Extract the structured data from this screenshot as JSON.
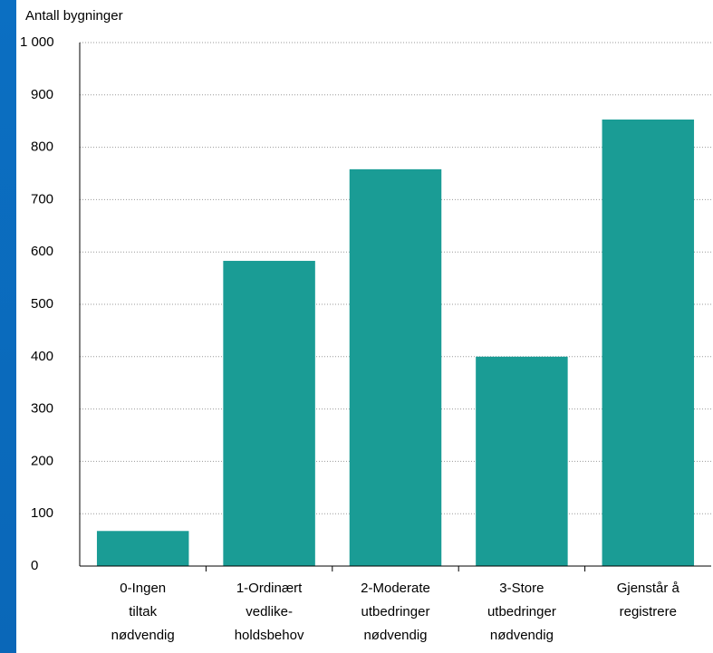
{
  "chart_data": {
    "type": "bar",
    "y_label": "Antall bygninger",
    "categories": [
      "0-Ingen\ntiltak\nnødvendig",
      "1-Ordinært\nvedlike-\nholdsbehov",
      "2-Moderate\nutbedringer\nnødvendig",
      "3-Store\nutbedringer\nnødvendig",
      "Gjenstår å\nregistrere"
    ],
    "values": [
      67,
      583,
      758,
      400,
      853
    ],
    "color": "#1a9c95",
    "ylim": [
      0,
      1000
    ],
    "yticks": [
      0,
      100,
      200,
      300,
      400,
      500,
      600,
      700,
      800,
      900,
      {
        "value": 1000,
        "label": "1 000"
      }
    ],
    "grid": true
  }
}
